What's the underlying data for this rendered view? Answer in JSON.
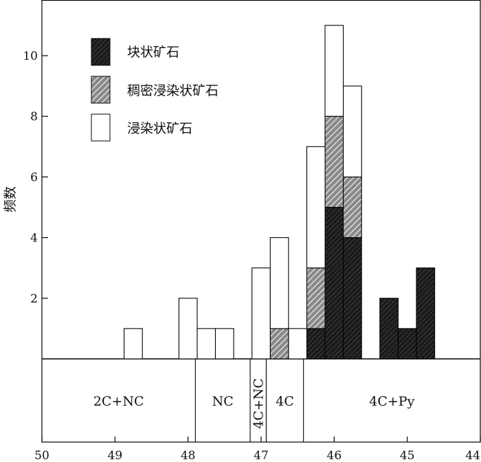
{
  "chart_data": {
    "type": "bar",
    "stacked": true,
    "ylabel": "频数",
    "xlabel": "",
    "x_reversed": true,
    "xlim": [
      50,
      44
    ],
    "ylim": [
      0,
      11.5
    ],
    "x_ticks": [
      50,
      49,
      48,
      47,
      46,
      45,
      44
    ],
    "y_ticks": [
      2,
      4,
      6,
      8,
      10
    ],
    "bin_width": 0.25,
    "legend_position": "top-left",
    "series": [
      {
        "name": "块状矿石",
        "pattern": "dark-hatch",
        "bins": [
          {
            "x_start": 46.375,
            "x_end": 46.125,
            "value": 1
          },
          {
            "x_start": 46.125,
            "x_end": 45.875,
            "value": 5
          },
          {
            "x_start": 45.875,
            "x_end": 45.625,
            "value": 4
          },
          {
            "x_start": 45.375,
            "x_end": 45.125,
            "value": 2
          },
          {
            "x_start": 45.125,
            "x_end": 44.875,
            "value": 1
          },
          {
            "x_start": 44.875,
            "x_end": 44.625,
            "value": 3
          }
        ]
      },
      {
        "name": "稠密浸染状矿石",
        "pattern": "gray-hatch",
        "bins": [
          {
            "x_start": 46.875,
            "x_end": 46.625,
            "value": 1
          },
          {
            "x_start": 46.375,
            "x_end": 46.125,
            "value": 2
          },
          {
            "x_start": 46.125,
            "x_end": 45.875,
            "value": 3
          },
          {
            "x_start": 45.875,
            "x_end": 45.625,
            "value": 2
          }
        ]
      },
      {
        "name": "浸染状矿石",
        "pattern": "white",
        "bins": [
          {
            "x_start": 48.875,
            "x_end": 48.625,
            "value": 1
          },
          {
            "x_start": 48.125,
            "x_end": 47.875,
            "value": 2
          },
          {
            "x_start": 47.875,
            "x_end": 47.625,
            "value": 1
          },
          {
            "x_start": 47.625,
            "x_end": 47.375,
            "value": 1
          },
          {
            "x_start": 47.125,
            "x_end": 46.875,
            "value": 3
          },
          {
            "x_start": 46.875,
            "x_end": 46.625,
            "value": 3
          },
          {
            "x_start": 46.625,
            "x_end": 46.375,
            "value": 1
          },
          {
            "x_start": 46.375,
            "x_end": 46.125,
            "value": 4
          },
          {
            "x_start": 46.125,
            "x_end": 45.875,
            "value": 3
          },
          {
            "x_start": 45.875,
            "x_end": 45.625,
            "value": 3
          }
        ]
      }
    ],
    "zones": [
      {
        "label": "2C+NC",
        "x_start": 50,
        "x_end": 47.9,
        "vertical": false
      },
      {
        "label": "NC",
        "x_start": 47.9,
        "x_end": 47.15,
        "vertical": false
      },
      {
        "label": "4C+NC",
        "x_start": 47.15,
        "x_end": 46.93,
        "vertical": true
      },
      {
        "label": "4C",
        "x_start": 46.93,
        "x_end": 46.42,
        "vertical": false
      },
      {
        "label": "4C+Py",
        "x_start": 46.42,
        "x_end": 44,
        "vertical": false
      }
    ]
  }
}
